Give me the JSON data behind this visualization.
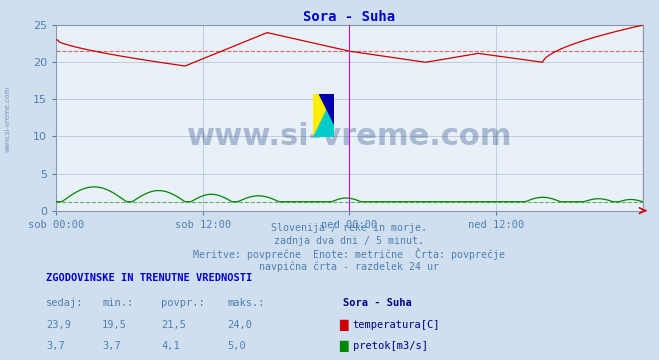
{
  "title": "Sora - Suha",
  "bg_color": "#d0dff0",
  "plot_bg_color": "#e8f0f8",
  "grid_color": "#b8c8d8",
  "xlabel_color": "#5080b0",
  "title_color": "#0000cc",
  "temp_color": "#cc0000",
  "flow_color": "#008800",
  "temp_avg_line_color": "#dd6666",
  "flow_avg_line_color": "#66aa66",
  "spine_color": "#8899aa",
  "magenta_line_color": "#cc00cc",
  "red_end_marker_color": "#cc0000",
  "ylim": [
    0,
    25
  ],
  "yticks": [
    0,
    5,
    10,
    15,
    20,
    25
  ],
  "temp_avg": 21.5,
  "flow_avg": 4.1,
  "n_points": 576,
  "subtitle_lines": [
    "Slovenija / reke in morje.",
    "zadnja dva dni / 5 minut.",
    "Meritve: povprečne  Enote: metrične  Črta: povprečje",
    "navpična črta - razdelek 24 ur"
  ],
  "xtick_labels": [
    "sob 00:00",
    "sob 12:00",
    "ned 00:00",
    "ned 12:00"
  ],
  "xtick_positions": [
    0.0,
    0.25,
    0.5,
    0.75
  ],
  "table_header": "ZGODOVINSKE IN TRENUTNE VREDNOSTI",
  "table_cols": [
    "sedaj:",
    "min.:",
    "povpr.:",
    "maks.:"
  ],
  "table_row1": [
    "23,9",
    "19,5",
    "21,5",
    "24,0"
  ],
  "table_row2": [
    "3,7",
    "3,7",
    "4,1",
    "5,0"
  ],
  "legend_title": "Sora - Suha",
  "legend_item1": "temperatura[C]",
  "legend_item2": "pretok[m3/s]",
  "watermark": "www.si-vreme.com",
  "watermark_color": "#1a3a7a",
  "flow_scale_max": 25.0,
  "flow_data_max": 5.0
}
